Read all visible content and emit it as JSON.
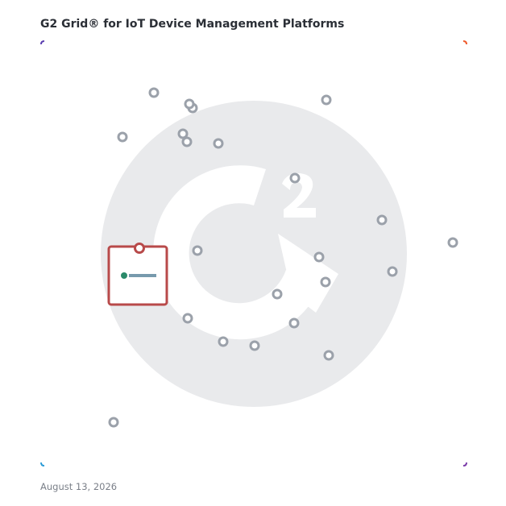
{
  "header": {
    "title": "G2 Grid® for IoT Device Management Platforms"
  },
  "footer": {
    "date": "August 13, 2026"
  }
}
